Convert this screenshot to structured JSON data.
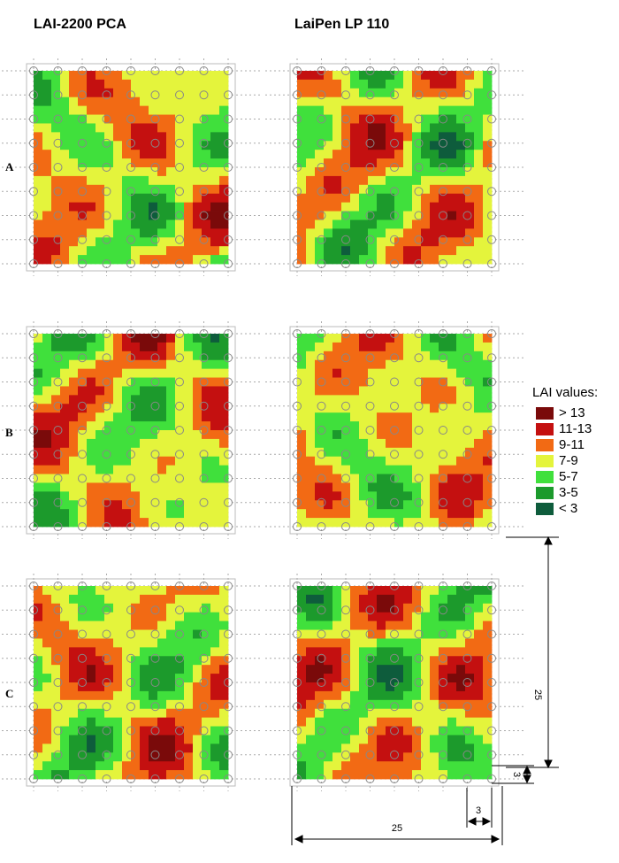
{
  "columns": [
    "LAI-2200 PCA",
    "LaiPen LP 110"
  ],
  "rows": [
    "A",
    "B",
    "C"
  ],
  "legend": {
    "title": "LAI values:",
    "items": [
      {
        "label": "> 13",
        "color": "#7a0a0a"
      },
      {
        "label": "11-13",
        "color": "#c41010"
      },
      {
        "label": "9-11",
        "color": "#f26a14"
      },
      {
        "label": "7-9",
        "color": "#e4f43c"
      },
      {
        "label": "5-7",
        "color": "#40e03c"
      },
      {
        "label": "3-5",
        "color": "#1c9a2c"
      },
      {
        "label": "< 3",
        "color": "#0e5c3c"
      }
    ]
  },
  "dimensions": {
    "height": 25,
    "width": 25,
    "cell_height": 3,
    "cell_width": 3
  }
}
